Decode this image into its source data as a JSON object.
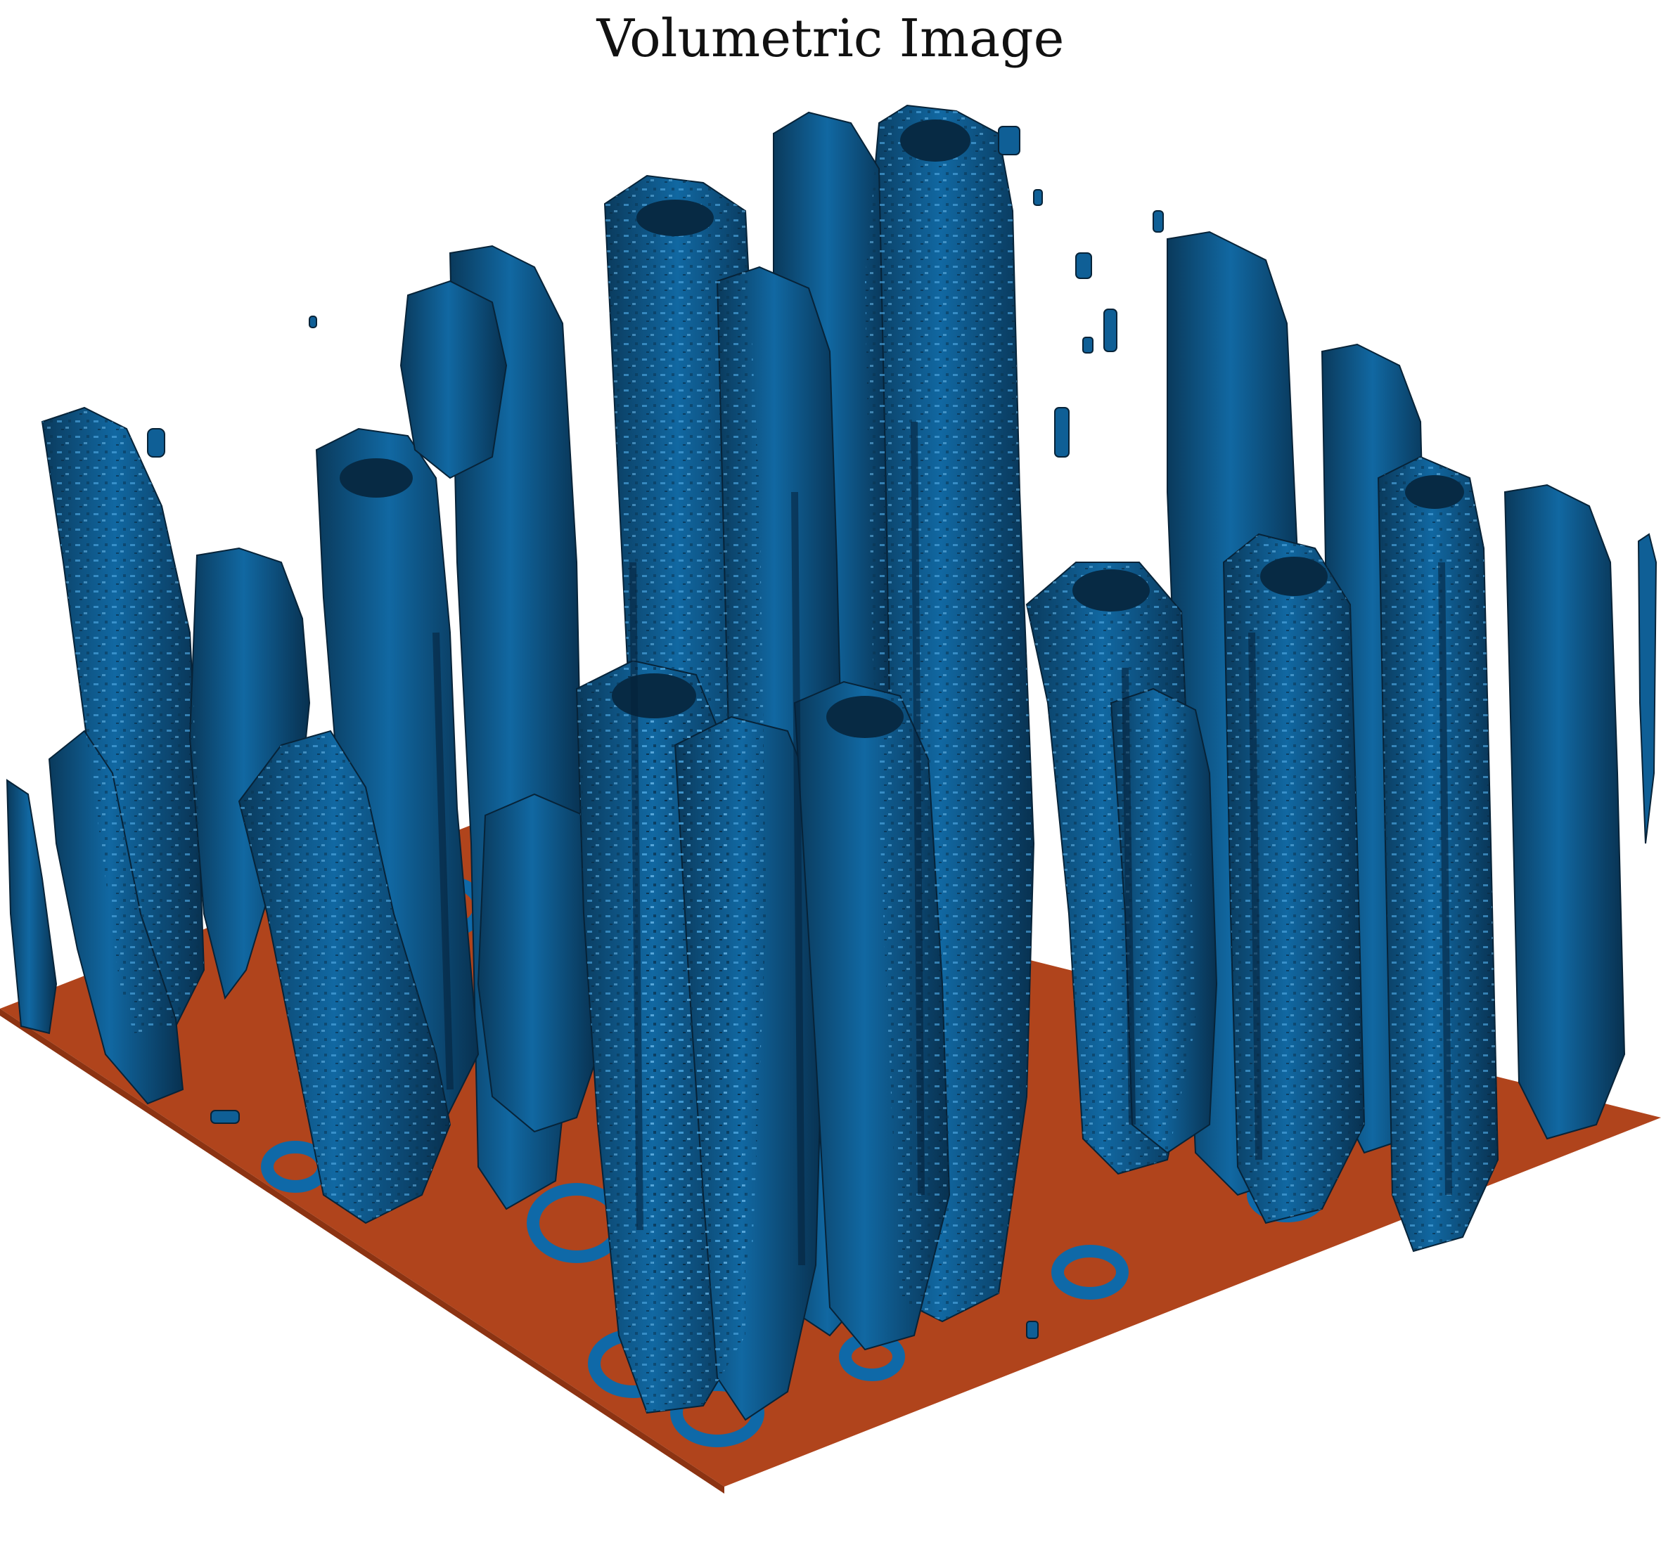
{
  "title": "Volumetric Image",
  "colors": {
    "background": "#ffffff",
    "floor": "#b0441c",
    "floor_rings": "#0f69a8",
    "surface_main": "#0f5f96",
    "surface_dark": "#0a3350",
    "surface_highlight": "#4aa3dc"
  }
}
